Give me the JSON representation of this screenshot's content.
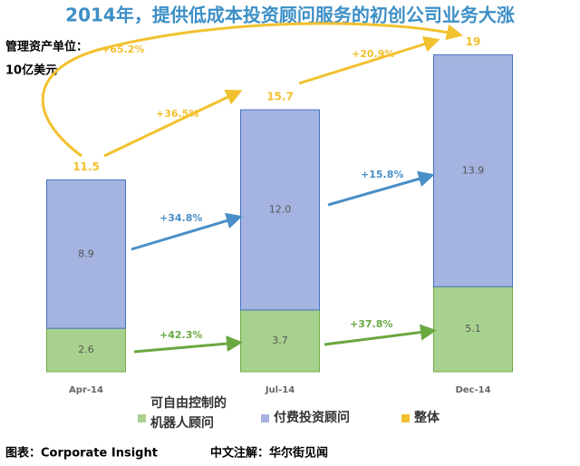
{
  "chart_data": {
    "type": "stacked_bar",
    "title": "2014年，提供低成本投资顾问服务的初创公司业务大涨",
    "unit_label": [
      "管理资产单位：",
      "10亿美元"
    ],
    "categories": [
      "Apr-14",
      "Jul-14",
      "Dec-14"
    ],
    "series": [
      {
        "name": "可自由控制的机器人顾问",
        "color": "#a9d18e",
        "values": [
          2.6,
          3.7,
          5.1
        ]
      },
      {
        "name": "付费投资顾问",
        "color": "#a4b3e0",
        "values": [
          8.9,
          12.0,
          13.9
        ],
        "value_labels": [
          "8.9",
          "12.0",
          "13.9"
        ]
      },
      {
        "name": "整体",
        "color": "#f2c12e",
        "values": [
          11.5,
          15.7,
          19
        ]
      }
    ],
    "annotations": [
      {
        "text": "+65.2%",
        "color": "#f2c12e"
      },
      {
        "text": "+36.5%",
        "color": "#f2c12e"
      },
      {
        "text": "+20.9%",
        "color": "#f2c12e"
      },
      {
        "text": "+34.8%",
        "color": "#4a8fc7"
      },
      {
        "text": "+15.8%",
        "color": "#4a8fc7"
      },
      {
        "text": "+42.3%",
        "color": "#6aa842"
      },
      {
        "text": "+37.8%",
        "color": "#6aa842"
      }
    ],
    "source": [
      "图表：Corporate Insight",
      "中文注解：华尔街见闻"
    ]
  }
}
